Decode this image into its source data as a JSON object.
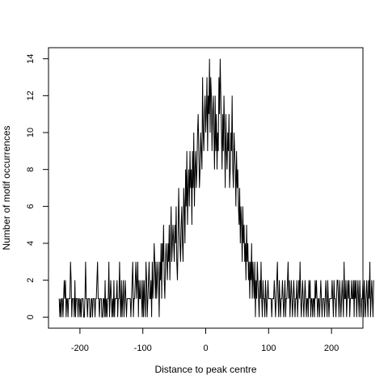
{
  "chart_data": {
    "type": "line",
    "title": "",
    "xlabel": "Distance to peak centre",
    "ylabel": "Number of motif occurrences",
    "xlim": [
      -250,
      250
    ],
    "ylim": [
      -0.6,
      14.6
    ],
    "x_ticks": [
      -200,
      -100,
      0,
      100,
      200
    ],
    "x_tick_labels": [
      "-200",
      "-100",
      "0",
      "100",
      "200"
    ],
    "y_ticks": [
      0,
      2,
      4,
      6,
      8,
      10,
      12,
      14
    ],
    "y_tick_labels": [
      "0",
      "2",
      "4",
      "6",
      "8",
      "10",
      "12",
      "14"
    ],
    "grid": false,
    "legend": "none",
    "line_color": "#000000",
    "series": [
      {
        "x_start": -233,
        "x_step": 1,
        "values": [
          1,
          0,
          1,
          0,
          1,
          1,
          0,
          1,
          2,
          1,
          2,
          0,
          1,
          1,
          0,
          1,
          1,
          1,
          3,
          2,
          0,
          1,
          1,
          1,
          0,
          2,
          0,
          1,
          1,
          1,
          0,
          1,
          1,
          0,
          1,
          0,
          1,
          1,
          1,
          0,
          0,
          1,
          3,
          1,
          1,
          0,
          1,
          1,
          1,
          0,
          0,
          1,
          1,
          0,
          1,
          1,
          1,
          0,
          1,
          1,
          2,
          3,
          1,
          1,
          0,
          1,
          1,
          1,
          0,
          0,
          1,
          1,
          0,
          2,
          0,
          1,
          0,
          1,
          1,
          3,
          0,
          1,
          2,
          1,
          0,
          1,
          0,
          2,
          0,
          1,
          1,
          1,
          2,
          0,
          1,
          1,
          3,
          1,
          0,
          2,
          0,
          1,
          2,
          0,
          1,
          2,
          1,
          0,
          1,
          1,
          1,
          1,
          1,
          1,
          0,
          1,
          2,
          3,
          0,
          1,
          1,
          2,
          3,
          1,
          2,
          3,
          0,
          2,
          1,
          1,
          2,
          1,
          0,
          2,
          0,
          2,
          1,
          0,
          3,
          2,
          0,
          1,
          2,
          3,
          1,
          1,
          2,
          0,
          3,
          1,
          2,
          4,
          3,
          1,
          3,
          1,
          2,
          3,
          2,
          0,
          3,
          2,
          4,
          1,
          4,
          3,
          5,
          2,
          1,
          3,
          4,
          3,
          2,
          4,
          3,
          5,
          2,
          4,
          6,
          3,
          4,
          5,
          4,
          3,
          5,
          4,
          6,
          3,
          2,
          4,
          7,
          5,
          4,
          3,
          5,
          6,
          4,
          3,
          7,
          6,
          4,
          8,
          6,
          9,
          5,
          7,
          8,
          6,
          9,
          7,
          8,
          5,
          9,
          7,
          10,
          6,
          8,
          9,
          7,
          8,
          10,
          11,
          9,
          7,
          8,
          10,
          9,
          8,
          13,
          10,
          9,
          11,
          12,
          10,
          11,
          13,
          9,
          12,
          11,
          14,
          10,
          13,
          12,
          9,
          11,
          12,
          10,
          8,
          12,
          9,
          11,
          8,
          10,
          9,
          13,
          11,
          14,
          12,
          10,
          8,
          11,
          9,
          12,
          10,
          7,
          11,
          9,
          8,
          10,
          9,
          11,
          7,
          8,
          10,
          9,
          12,
          8,
          7,
          10,
          9,
          8,
          6,
          9,
          7,
          8,
          6,
          5,
          7,
          4,
          6,
          5,
          3,
          6,
          4,
          5,
          3,
          4,
          2,
          5,
          3,
          4,
          2,
          3,
          1,
          3,
          2,
          4,
          1,
          3,
          2,
          1,
          3,
          0,
          2,
          1,
          3,
          2,
          1,
          0,
          2,
          1,
          3,
          1,
          0,
          2,
          1,
          1,
          0,
          2,
          1,
          0,
          1,
          2,
          1,
          1,
          1,
          1,
          1,
          0,
          1,
          1,
          1,
          2,
          1,
          0,
          1,
          2,
          3,
          1,
          0,
          2,
          1,
          0,
          1,
          1,
          2,
          1,
          0,
          1,
          2,
          0,
          1,
          1,
          2,
          3,
          1,
          2,
          0,
          1,
          2,
          1,
          0,
          1,
          2,
          1,
          0,
          1,
          1,
          2,
          0,
          1,
          2,
          1,
          3,
          1,
          0,
          1,
          2,
          1,
          0,
          1,
          2,
          1,
          0,
          1,
          1,
          0,
          2,
          1,
          2,
          0,
          1,
          1,
          0,
          1,
          1,
          0,
          2,
          1,
          2,
          1,
          0,
          1,
          1,
          0,
          1,
          2,
          1,
          0,
          1,
          1,
          1,
          0,
          1,
          2,
          1,
          0,
          2,
          1,
          0,
          1,
          1,
          1,
          1,
          2,
          1,
          0,
          2,
          1,
          1,
          0,
          1,
          2,
          2,
          1,
          0,
          2,
          1,
          0,
          1,
          2,
          1,
          0,
          3,
          1,
          1,
          2,
          0,
          1,
          2,
          1,
          2,
          0,
          1,
          1,
          2,
          1,
          1,
          2,
          0,
          2,
          1,
          2,
          0,
          1,
          2,
          1,
          0,
          2,
          1,
          0,
          1,
          1,
          2,
          0,
          2,
          1,
          0,
          1,
          2,
          1,
          0,
          2,
          1,
          3,
          0,
          1,
          2,
          1,
          0,
          2
        ]
      }
    ]
  }
}
